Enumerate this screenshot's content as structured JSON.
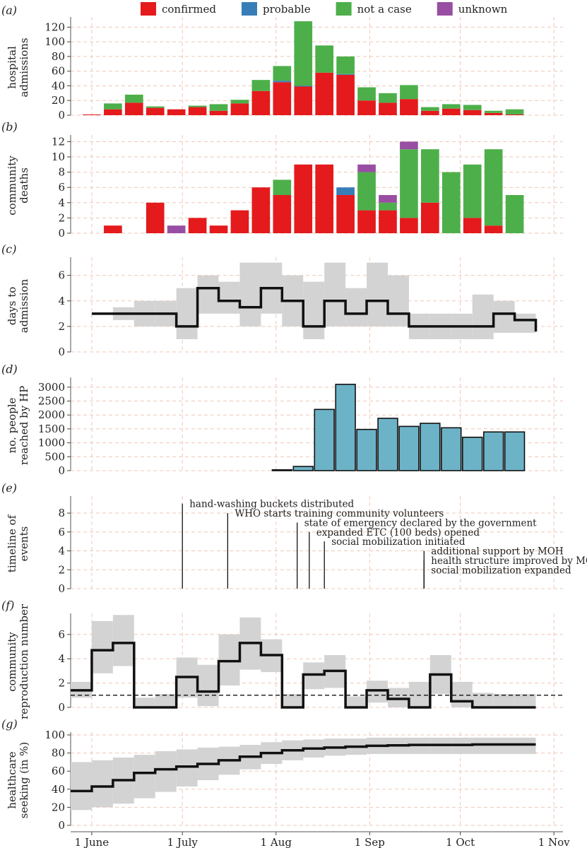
{
  "legend": [
    {
      "label": "confirmed",
      "color": "#e41a1c"
    },
    {
      "label": "probable",
      "color": "#377eb8"
    },
    {
      "label": "not a case",
      "color": "#4daf4a"
    },
    {
      "label": "unknown",
      "color": "#984ea3"
    }
  ],
  "x_axis": {
    "tick_labels": [
      "1 June",
      "1 July",
      "1 Aug",
      "1 Sep",
      "1 Oct",
      "1 Nov"
    ],
    "tick_days": [
      0,
      30,
      61,
      92,
      122,
      153
    ],
    "range_days": [
      -7,
      156
    ]
  },
  "chart_data": [
    {
      "id": "a",
      "panel_label": "(a)",
      "type": "bar",
      "stacked": true,
      "ylabel": [
        "hospital",
        "admissions"
      ],
      "ylim": [
        0,
        130
      ],
      "yticks": [
        0,
        20,
        40,
        60,
        80,
        100,
        120
      ],
      "bar_width_days": 6,
      "x_days": [
        0,
        7,
        14,
        21,
        28,
        35,
        42,
        49,
        56,
        63,
        70,
        77,
        84,
        91,
        98,
        105,
        112,
        119,
        126,
        133,
        140
      ],
      "series": [
        {
          "name": "confirmed",
          "values": [
            1,
            8,
            17,
            10,
            8,
            11,
            6,
            16,
            33,
            45,
            39,
            58,
            55,
            20,
            17,
            22,
            6,
            9,
            7,
            3,
            1
          ]
        },
        {
          "name": "probable",
          "values": [
            0,
            0,
            0,
            0,
            0,
            0,
            0,
            0,
            0,
            2,
            1,
            0,
            1,
            0,
            0,
            0,
            0,
            0,
            0,
            0,
            0
          ]
        },
        {
          "name": "not a case",
          "values": [
            0,
            8,
            11,
            2,
            0,
            2,
            9,
            5,
            15,
            20,
            88,
            37,
            24,
            18,
            13,
            19,
            5,
            6,
            7,
            3,
            7
          ]
        },
        {
          "name": "unknown",
          "values": [
            0,
            0,
            0,
            0,
            0,
            0,
            0,
            0,
            0,
            0,
            0,
            0,
            0,
            0,
            0,
            0,
            0,
            0,
            0,
            0,
            0
          ]
        }
      ]
    },
    {
      "id": "b",
      "panel_label": "(b)",
      "type": "bar",
      "stacked": true,
      "ylabel": [
        "community",
        "deaths"
      ],
      "ylim": [
        0,
        12.5
      ],
      "yticks": [
        0,
        2,
        4,
        6,
        8,
        10,
        12
      ],
      "bar_width_days": 6,
      "x_days": [
        0,
        7,
        14,
        21,
        28,
        35,
        42,
        49,
        56,
        63,
        70,
        77,
        84,
        91,
        98,
        105,
        112,
        119,
        126,
        133,
        140
      ],
      "series": [
        {
          "name": "confirmed",
          "values": [
            0,
            1,
            0,
            4,
            0,
            2,
            1,
            3,
            6,
            5,
            9,
            9,
            5,
            3,
            3,
            2,
            4,
            0,
            2,
            1,
            0
          ]
        },
        {
          "name": "probable",
          "values": [
            0,
            0,
            0,
            0,
            0,
            0,
            0,
            0,
            0,
            0,
            0,
            0,
            1,
            0,
            0,
            0,
            0,
            0,
            0,
            0,
            0
          ]
        },
        {
          "name": "not a case",
          "values": [
            0,
            0,
            0,
            0,
            0,
            0,
            0,
            0,
            0,
            2,
            0,
            0,
            0,
            5,
            1,
            9,
            7,
            8,
            7,
            10,
            5
          ]
        },
        {
          "name": "unknown",
          "values": [
            0,
            0,
            0,
            0,
            1,
            0,
            0,
            0,
            0,
            0,
            0,
            0,
            0,
            1,
            1,
            1,
            0,
            0,
            0,
            0,
            0
          ]
        }
      ]
    },
    {
      "id": "c",
      "panel_label": "(c)",
      "type": "line",
      "step": true,
      "ylabel": [
        "days to",
        "admission"
      ],
      "ylim": [
        0,
        7.2
      ],
      "yticks": [
        0,
        2,
        4,
        6
      ],
      "x_days": [
        0,
        7,
        14,
        21,
        28,
        35,
        42,
        49,
        56,
        63,
        70,
        77,
        84,
        91,
        98,
        105,
        112,
        119,
        126,
        133,
        140
      ],
      "values": [
        3,
        3,
        3,
        3,
        2,
        5,
        4,
        3.5,
        5,
        4,
        2,
        4,
        3,
        4,
        3,
        2,
        2,
        2,
        2,
        3,
        2.5
      ],
      "end_value": 1.6,
      "band_lower": [
        null,
        2.5,
        2,
        2,
        1,
        3,
        3,
        2,
        3,
        2,
        1,
        2,
        2,
        2,
        2,
        1,
        1,
        1,
        1,
        1.5,
        1.5
      ],
      "band_upper": [
        null,
        3.5,
        4,
        4,
        5,
        6,
        5.5,
        7,
        7,
        6,
        5.5,
        7,
        5,
        7,
        6,
        3,
        3,
        3,
        4.5,
        4,
        3
      ]
    },
    {
      "id": "d",
      "panel_label": "(d)",
      "type": "bar",
      "ylabel": [
        "no. people",
        "reached by HP"
      ],
      "ylim": [
        0,
        3250
      ],
      "yticks": [
        0,
        500,
        1000,
        1500,
        2000,
        2500,
        3000
      ],
      "bar_width_days": 6.5,
      "color": "#6db3c8",
      "x_days": [
        63,
        70,
        77,
        84,
        91,
        98,
        105,
        112,
        119,
        126,
        133,
        140
      ],
      "values": [
        30,
        150,
        2200,
        3100,
        1480,
        1880,
        1590,
        1700,
        1540,
        1200,
        1390,
        1390
      ]
    },
    {
      "id": "e",
      "panel_label": "(e)",
      "type": "timeline",
      "ylabel": [
        "timeline of",
        "events"
      ],
      "ylim": [
        0,
        9.5
      ],
      "yticks": [
        0,
        2,
        4,
        6,
        8
      ],
      "events": [
        {
          "day": 30,
          "height": 9,
          "label": "hand-washing buckets distributed"
        },
        {
          "day": 45,
          "height": 8,
          "label": "WHO starts training community volunteers"
        },
        {
          "day": 68,
          "height": 7,
          "label": "state of emergency declared by the government"
        },
        {
          "day": 72,
          "height": 6,
          "label": "expanded ETC (100 beds) opened"
        },
        {
          "day": 77,
          "height": 5,
          "label": "social mobilization initiated"
        },
        {
          "day": 110,
          "height": 4,
          "label": "additional support by MOH"
        },
        {
          "day": 110,
          "height": 3,
          "label": "health structure improved by MOH"
        },
        {
          "day": 110,
          "height": 2,
          "label": "social mobilization expanded"
        }
      ]
    },
    {
      "id": "f",
      "panel_label": "(f)",
      "type": "line",
      "step": true,
      "ylabel": [
        "community",
        "reproduction number"
      ],
      "ylim": [
        0,
        7.5
      ],
      "yticks": [
        0,
        2,
        4,
        6
      ],
      "reference_line": 1,
      "x_days": [
        -7,
        0,
        7,
        14,
        21,
        28,
        35,
        42,
        49,
        56,
        63,
        70,
        77,
        84,
        91,
        98,
        105,
        112,
        119,
        126,
        133,
        140
      ],
      "values": [
        1.4,
        4.7,
        5.3,
        0,
        0,
        2.5,
        1.3,
        3.8,
        5.3,
        4.3,
        0,
        2.7,
        3.0,
        0,
        1.4,
        0.7,
        0,
        2.7,
        0.5,
        0,
        0,
        0
      ],
      "band_lower": [
        0.8,
        2.8,
        3.4,
        0,
        0,
        0.8,
        0.1,
        1.8,
        3.1,
        2.9,
        0,
        1.5,
        1.6,
        0,
        0.4,
        0,
        0,
        1.1,
        0,
        0,
        0,
        0
      ],
      "band_upper": [
        2.1,
        7.1,
        7.6,
        0.8,
        1.1,
        4.1,
        3.5,
        6.0,
        7.4,
        5.6,
        1.1,
        3.7,
        4.3,
        0.9,
        2.2,
        1.6,
        2.1,
        4.3,
        2.1,
        1.2,
        1.1,
        1.1
      ]
    },
    {
      "id": "g",
      "panel_label": "(g)",
      "type": "line",
      "step": true,
      "ylabel": [
        "healthcare",
        "seeking (in %)"
      ],
      "ylim": [
        0,
        100
      ],
      "yticks": [
        0,
        20,
        40,
        60,
        80,
        100
      ],
      "x_days": [
        -7,
        0,
        7,
        14,
        21,
        28,
        35,
        42,
        49,
        56,
        63,
        70,
        77,
        84,
        91,
        98,
        105,
        112,
        119,
        126,
        133,
        140
      ],
      "values": [
        38,
        43,
        50,
        58,
        62,
        65,
        68,
        72,
        76,
        80,
        83,
        85,
        86,
        87,
        88,
        88.5,
        89,
        89,
        89,
        89.5,
        89.5,
        89.5
      ],
      "band_lower": [
        17,
        20,
        24,
        30,
        37,
        43,
        50,
        56,
        62,
        68,
        72,
        75,
        77,
        78,
        79,
        79,
        79,
        79,
        79,
        79,
        79,
        79
      ],
      "band_upper": [
        70,
        72,
        75,
        78,
        82,
        84,
        86,
        87,
        89,
        92,
        94,
        95,
        96,
        96,
        97,
        97,
        97,
        97,
        97,
        97,
        97,
        97
      ]
    }
  ]
}
